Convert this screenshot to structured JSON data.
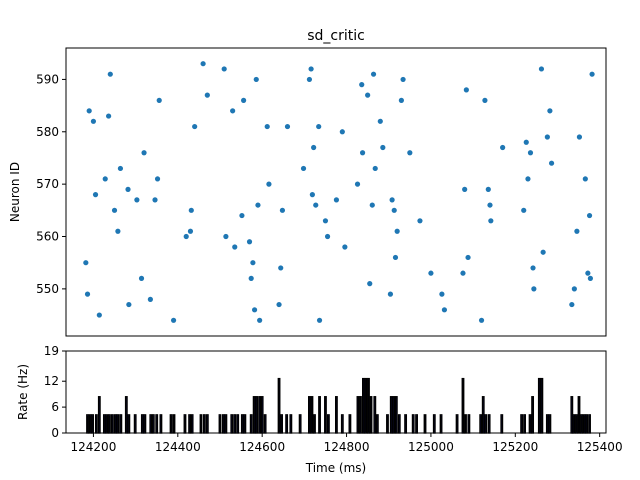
{
  "chart_data": [
    {
      "type": "scatter",
      "title": "sd_critic",
      "xlabel": "",
      "ylabel": "Neuron ID",
      "xlim": [
        124135,
        125415
      ],
      "ylim": [
        541,
        596
      ],
      "yticks": [
        550,
        560,
        570,
        580,
        590
      ],
      "xticks_shown": false,
      "color": "#1f77b4",
      "points": [
        [
          124182,
          555
        ],
        [
          124186,
          549
        ],
        [
          124190,
          584
        ],
        [
          124200,
          582
        ],
        [
          124205,
          568
        ],
        [
          124214,
          545
        ],
        [
          124228,
          571
        ],
        [
          124236,
          583
        ],
        [
          124240,
          591
        ],
        [
          124250,
          565
        ],
        [
          124258,
          561
        ],
        [
          124264,
          573
        ],
        [
          124282,
          569
        ],
        [
          124284,
          547
        ],
        [
          124303,
          567
        ],
        [
          124314,
          552
        ],
        [
          124320,
          576
        ],
        [
          124335,
          548
        ],
        [
          124346,
          567
        ],
        [
          124352,
          571
        ],
        [
          124356,
          586
        ],
        [
          124390,
          544
        ],
        [
          124420,
          560
        ],
        [
          124430,
          561
        ],
        [
          124432,
          565
        ],
        [
          124440,
          581
        ],
        [
          124460,
          593
        ],
        [
          124470,
          587
        ],
        [
          124510,
          592
        ],
        [
          124514,
          560
        ],
        [
          124530,
          584
        ],
        [
          124535,
          558
        ],
        [
          124552,
          564
        ],
        [
          124556,
          586
        ],
        [
          124570,
          559
        ],
        [
          124574,
          552
        ],
        [
          124578,
          555
        ],
        [
          124582,
          546
        ],
        [
          124586,
          590
        ],
        [
          124590,
          566
        ],
        [
          124594,
          544
        ],
        [
          124612,
          581
        ],
        [
          124616,
          570
        ],
        [
          124640,
          547
        ],
        [
          124644,
          554
        ],
        [
          124648,
          565
        ],
        [
          124660,
          581
        ],
        [
          124698,
          573
        ],
        [
          124712,
          590
        ],
        [
          124716,
          592
        ],
        [
          124719,
          568
        ],
        [
          124722,
          577
        ],
        [
          124727,
          566
        ],
        [
          124734,
          581
        ],
        [
          124736,
          544
        ],
        [
          124750,
          563
        ],
        [
          124755,
          560
        ],
        [
          124776,
          567
        ],
        [
          124790,
          580
        ],
        [
          124796,
          558
        ],
        [
          124826,
          570
        ],
        [
          124836,
          589
        ],
        [
          124838,
          576
        ],
        [
          124850,
          587
        ],
        [
          124855,
          551
        ],
        [
          124861,
          566
        ],
        [
          124864,
          591
        ],
        [
          124868,
          573
        ],
        [
          124880,
          582
        ],
        [
          124886,
          577
        ],
        [
          124904,
          549
        ],
        [
          124908,
          567
        ],
        [
          124913,
          565
        ],
        [
          124916,
          556
        ],
        [
          124920,
          561
        ],
        [
          124930,
          586
        ],
        [
          124934,
          590
        ],
        [
          124950,
          576
        ],
        [
          124974,
          563
        ],
        [
          125000,
          553
        ],
        [
          125026,
          549
        ],
        [
          125032,
          546
        ],
        [
          125076,
          553
        ],
        [
          125080,
          569
        ],
        [
          125084,
          588
        ],
        [
          125088,
          556
        ],
        [
          125120,
          544
        ],
        [
          125128,
          586
        ],
        [
          125136,
          569
        ],
        [
          125140,
          566
        ],
        [
          125142,
          563
        ],
        [
          125170,
          577
        ],
        [
          125220,
          565
        ],
        [
          125226,
          578
        ],
        [
          125230,
          571
        ],
        [
          125236,
          576
        ],
        [
          125242,
          554
        ],
        [
          125244,
          550
        ],
        [
          125262,
          592
        ],
        [
          125266,
          557
        ],
        [
          125276,
          579
        ],
        [
          125282,
          584
        ],
        [
          125286,
          574
        ],
        [
          125334,
          547
        ],
        [
          125340,
          550
        ],
        [
          125346,
          561
        ],
        [
          125352,
          579
        ],
        [
          125366,
          571
        ],
        [
          125372,
          553
        ],
        [
          125376,
          564
        ],
        [
          125378,
          552
        ],
        [
          125382,
          591
        ]
      ]
    },
    {
      "type": "bar",
      "title": "",
      "xlabel": "Time (ms)",
      "ylabel": "Rate (Hz)",
      "xlim": [
        124135,
        125415
      ],
      "ylim": [
        0,
        19
      ],
      "yticks": [
        0,
        6,
        12,
        19
      ],
      "xticks": [
        124200,
        124400,
        124600,
        124800,
        125000,
        125200,
        125400
      ],
      "bar_width": 3.4,
      "fill_color": "#1f1f8a",
      "edge_color": "#000000",
      "bars": [
        [
          124186,
          4.2
        ],
        [
          124192,
          4.2
        ],
        [
          124198,
          4.2
        ],
        [
          124207,
          4.2
        ],
        [
          124214,
          8.4
        ],
        [
          124226,
          4.2
        ],
        [
          124232,
          4.2
        ],
        [
          124238,
          4.2
        ],
        [
          124245,
          4.2
        ],
        [
          124252,
          4.2
        ],
        [
          124258,
          4.2
        ],
        [
          124265,
          4.2
        ],
        [
          124278,
          8.4
        ],
        [
          124284,
          4.2
        ],
        [
          124299,
          4.2
        ],
        [
          124316,
          4.2
        ],
        [
          124322,
          4.2
        ],
        [
          124336,
          4.2
        ],
        [
          124342,
          4.2
        ],
        [
          124350,
          4.2
        ],
        [
          124360,
          4.2
        ],
        [
          124384,
          4.2
        ],
        [
          124391,
          4.2
        ],
        [
          124417,
          4.2
        ],
        [
          124428,
          4.2
        ],
        [
          124434,
          4.2
        ],
        [
          124455,
          4.2
        ],
        [
          124463,
          4.2
        ],
        [
          124470,
          4.2
        ],
        [
          124500,
          4.2
        ],
        [
          124508,
          4.2
        ],
        [
          124514,
          4.2
        ],
        [
          124528,
          4.2
        ],
        [
          124535,
          4.2
        ],
        [
          124542,
          4.2
        ],
        [
          124553,
          4.2
        ],
        [
          124559,
          4.2
        ],
        [
          124574,
          4.2
        ],
        [
          124581,
          8.4
        ],
        [
          124587,
          8.4
        ],
        [
          124594,
          8.4
        ],
        [
          124600,
          8.4
        ],
        [
          124607,
          4.2
        ],
        [
          124640,
          12.6
        ],
        [
          124646,
          4.2
        ],
        [
          124658,
          4.2
        ],
        [
          124668,
          4.2
        ],
        [
          124690,
          4.2
        ],
        [
          124712,
          8.4
        ],
        [
          124718,
          8.4
        ],
        [
          124724,
          4.2
        ],
        [
          124736,
          8.4
        ],
        [
          124750,
          8.4
        ],
        [
          124757,
          4.2
        ],
        [
          124776,
          8.4
        ],
        [
          124790,
          4.2
        ],
        [
          124808,
          4.2
        ],
        [
          124827,
          8.4
        ],
        [
          124833,
          8.4
        ],
        [
          124840,
          12.6
        ],
        [
          124846,
          12.6
        ],
        [
          124852,
          12.6
        ],
        [
          124858,
          8.4
        ],
        [
          124867,
          8.4
        ],
        [
          124873,
          4.2
        ],
        [
          124897,
          4.2
        ],
        [
          124906,
          8.4
        ],
        [
          124912,
          8.4
        ],
        [
          124918,
          8.4
        ],
        [
          124925,
          4.2
        ],
        [
          124940,
          4.2
        ],
        [
          124958,
          4.2
        ],
        [
          124966,
          4.2
        ],
        [
          124986,
          4.2
        ],
        [
          125008,
          4.2
        ],
        [
          125024,
          4.2
        ],
        [
          125062,
          4.2
        ],
        [
          125076,
          12.6
        ],
        [
          125082,
          4.2
        ],
        [
          125090,
          4.2
        ],
        [
          125118,
          4.2
        ],
        [
          125124,
          8.4
        ],
        [
          125130,
          4.2
        ],
        [
          125138,
          4.2
        ],
        [
          125168,
          4.2
        ],
        [
          125215,
          4.2
        ],
        [
          125222,
          4.2
        ],
        [
          125235,
          4.2
        ],
        [
          125241,
          8.4
        ],
        [
          125257,
          12.6
        ],
        [
          125263,
          12.6
        ],
        [
          125276,
          4.2
        ],
        [
          125282,
          4.2
        ],
        [
          125334,
          8.4
        ],
        [
          125339,
          4.2
        ],
        [
          125345,
          4.2
        ],
        [
          125351,
          8.4
        ],
        [
          125357,
          4.2
        ],
        [
          125363,
          4.2
        ],
        [
          125369,
          4.2
        ],
        [
          125376,
          4.2
        ]
      ]
    }
  ]
}
